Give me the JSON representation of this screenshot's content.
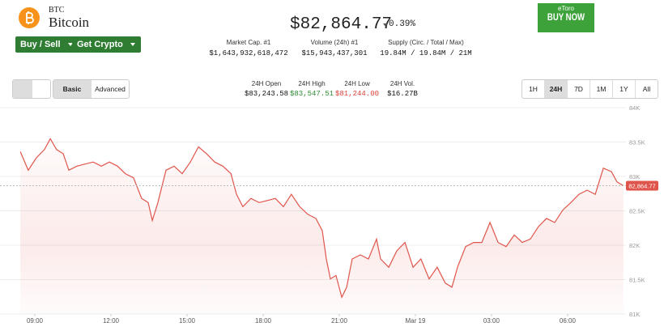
{
  "header": {
    "symbol": "BTC",
    "name": "Bitcoin",
    "price": "$82,864.77",
    "change": "0.39%",
    "buttons": [
      "Buy / Sell",
      "Get Crypto"
    ],
    "ad": {
      "brand": "eToro",
      "cta": "BUY NOW"
    }
  },
  "stats": [
    {
      "label": "Market Cap. #1",
      "value": "$1,643,932,618,472"
    },
    {
      "label": "Volume (24h) #1",
      "value": "$15,943,437,301"
    },
    {
      "label": "Supply (Circ. / Total / Max)",
      "value": "19.84M / 19.84M / 21M"
    }
  ],
  "controls": {
    "modes": [
      "Basic",
      "Advanced"
    ],
    "ranges": [
      "1H",
      "24H",
      "7D",
      "1M",
      "1Y",
      "All"
    ],
    "day_stats": [
      {
        "label": "24H Open",
        "value": "$83,243.58"
      },
      {
        "label": "24H High",
        "value": "$83,547.51"
      },
      {
        "label": "24H Low",
        "value": "$81,244.00"
      },
      {
        "label": "24H Vol.",
        "value": "$16.27B"
      }
    ]
  },
  "chart_data": {
    "type": "line",
    "x": [
      -0.57,
      -0.26,
      0.06,
      0.38,
      0.61,
      0.86,
      1.12,
      1.34,
      1.66,
      1.98,
      2.3,
      2.62,
      2.94,
      3.26,
      3.57,
      3.89,
      4.21,
      4.47,
      4.63,
      4.85,
      5.17,
      5.49,
      5.81,
      6.13,
      6.45,
      6.77,
      7.09,
      7.41,
      7.73,
      7.95,
      8.2,
      8.52,
      8.84,
      9.16,
      9.48,
      9.8,
      10.11,
      10.44,
      10.76,
      11.08,
      11.33,
      11.49,
      11.65,
      11.87,
      12.1,
      12.29,
      12.51,
      12.83,
      13.15,
      13.47,
      13.63,
      13.95,
      14.27,
      14.59,
      14.91,
      15.22,
      15.54,
      15.86,
      16.18,
      16.44,
      16.66,
      16.98,
      17.3,
      17.62,
      17.94,
      18.26,
      18.58,
      18.9,
      19.21,
      19.53,
      19.85,
      20.17,
      20.49,
      20.81,
      21.13,
      21.45,
      21.77,
      22.09,
      22.41,
      22.73,
      22.95,
      23.2
    ],
    "series": [
      {
        "color": "#e0554b",
        "values": [
          83360,
          83090,
          83270,
          83390,
          83547.51,
          83390,
          83330,
          83090,
          83150,
          83180,
          83210,
          83150,
          83210,
          83150,
          83040,
          82980,
          82680,
          82620,
          82360,
          82620,
          83090,
          83150,
          83040,
          83210,
          83430,
          83330,
          83210,
          83150,
          83040,
          82740,
          82560,
          82680,
          82620,
          82650,
          82680,
          82560,
          82740,
          82560,
          82450,
          82390,
          82210,
          81800,
          81510,
          81560,
          81244,
          81390,
          81800,
          81860,
          81800,
          82090,
          81800,
          81680,
          81920,
          82040,
          81680,
          81800,
          81510,
          81680,
          81450,
          81390,
          81680,
          81980,
          82040,
          82040,
          82330,
          82040,
          81980,
          82150,
          82040,
          82090,
          82270,
          82390,
          82330,
          82510,
          82620,
          82740,
          82800,
          82740,
          83120,
          83070,
          82920,
          82864.77
        ]
      }
    ],
    "xlim": [
      -0.6,
      23.3
    ],
    "xticks": [
      {
        "value": 0,
        "label": "09:00"
      },
      {
        "value": 3,
        "label": "12:00"
      },
      {
        "value": 6,
        "label": "15:00"
      },
      {
        "value": 9,
        "label": "18:00"
      },
      {
        "value": 12,
        "label": "21:00"
      },
      {
        "value": 15,
        "label": "Mar 19"
      },
      {
        "value": 18,
        "label": "03:00"
      },
      {
        "value": 21,
        "label": "06:00"
      }
    ],
    "ylim": [
      81000,
      84000
    ],
    "yticks": [
      {
        "value": 81000,
        "label": "81K"
      },
      {
        "value": 81500,
        "label": "81.5K"
      },
      {
        "value": 82000,
        "label": "82K"
      },
      {
        "value": 82500,
        "label": "82.5K"
      },
      {
        "value": 83000,
        "label": "83K"
      },
      {
        "value": 83500,
        "label": "83.5K"
      },
      {
        "value": 84000,
        "label": "84K"
      }
    ],
    "price_tag": {
      "value": 82864.77,
      "label": "82,864.77"
    },
    "grid": true
  }
}
